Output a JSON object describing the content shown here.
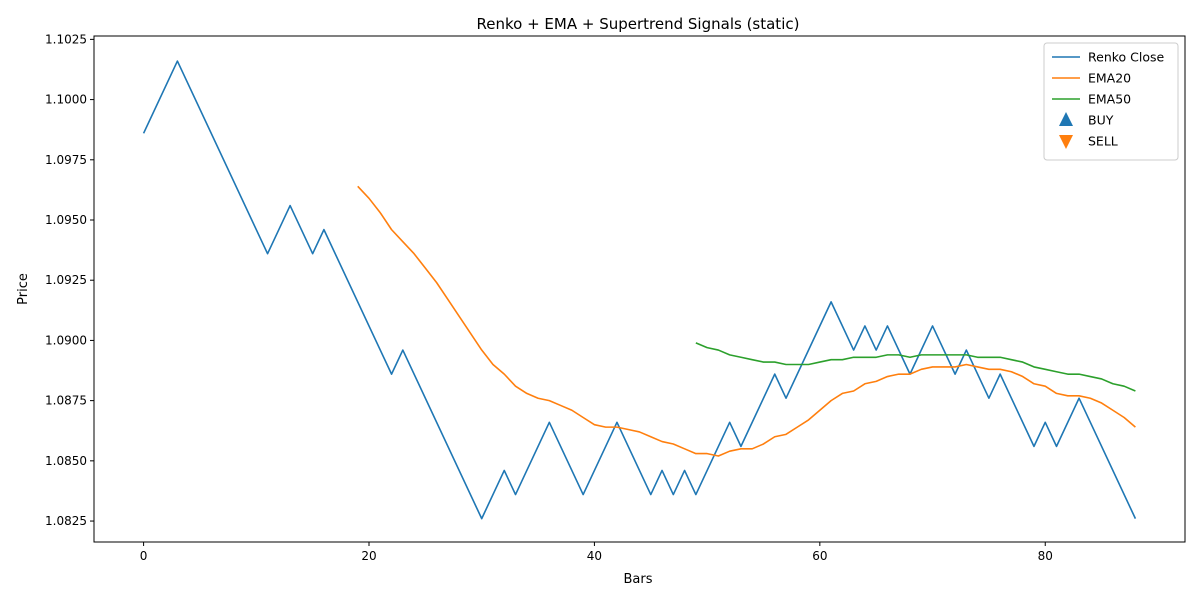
{
  "chart_data": {
    "type": "line",
    "title": "Renko + EMA + Supertrend Signals (static)",
    "xlabel": "Bars",
    "ylabel": "Price",
    "xlim": [
      -4.4,
      92.4
    ],
    "ylim": [
      1.08163,
      1.10264
    ],
    "xticks": [
      0,
      20,
      40,
      60,
      80
    ],
    "yticks": [
      1.0825,
      1.085,
      1.0875,
      1.09,
      1.0925,
      1.095,
      1.0975,
      1.1,
      1.1025
    ],
    "ytick_labels": [
      "1.0825",
      "1.0850",
      "1.0875",
      "1.0900",
      "1.0925",
      "1.0950",
      "1.0975",
      "1.1000",
      "1.1025"
    ],
    "legend_position": "upper right",
    "series": [
      {
        "name": "Renko Close",
        "color": "#1f77b4",
        "points": [
          [
            0,
            1.0986
          ],
          [
            3,
            1.1016
          ],
          [
            11,
            1.0936
          ],
          [
            13,
            1.0956
          ],
          [
            15,
            1.0936
          ],
          [
            16,
            1.0946
          ],
          [
            22,
            1.0886
          ],
          [
            23,
            1.0896
          ],
          [
            30,
            1.0826
          ],
          [
            32,
            1.0846
          ],
          [
            33,
            1.0836
          ],
          [
            36,
            1.0866
          ],
          [
            39,
            1.0836
          ],
          [
            42,
            1.0866
          ],
          [
            45,
            1.0836
          ],
          [
            46,
            1.0846
          ],
          [
            47,
            1.0836
          ],
          [
            48,
            1.0846
          ],
          [
            49,
            1.0836
          ],
          [
            52,
            1.0866
          ],
          [
            53,
            1.0856
          ],
          [
            56,
            1.0886
          ],
          [
            57,
            1.0876
          ],
          [
            61,
            1.0916
          ],
          [
            63,
            1.0896
          ],
          [
            64,
            1.0906
          ],
          [
            65,
            1.0896
          ],
          [
            66,
            1.0906
          ],
          [
            68,
            1.0886
          ],
          [
            70,
            1.0906
          ],
          [
            72,
            1.0886
          ],
          [
            73,
            1.0896
          ],
          [
            75,
            1.0876
          ],
          [
            76,
            1.0886
          ],
          [
            79,
            1.0856
          ],
          [
            80,
            1.0866
          ],
          [
            81,
            1.0856
          ],
          [
            83,
            1.0876
          ],
          [
            88,
            1.0826
          ]
        ]
      },
      {
        "name": "EMA20",
        "color": "#ff7f0e",
        "points": [
          [
            19,
            1.0964
          ],
          [
            20,
            1.0959
          ],
          [
            21,
            1.0953
          ],
          [
            22,
            1.0946
          ],
          [
            23,
            1.0941
          ],
          [
            24,
            1.0936
          ],
          [
            25,
            1.093
          ],
          [
            26,
            1.0924
          ],
          [
            27,
            1.0917
          ],
          [
            28,
            1.091
          ],
          [
            29,
            1.0903
          ],
          [
            30,
            1.0896
          ],
          [
            31,
            1.089
          ],
          [
            32,
            1.0886
          ],
          [
            33,
            1.0881
          ],
          [
            34,
            1.0878
          ],
          [
            35,
            1.0876
          ],
          [
            36,
            1.0875
          ],
          [
            37,
            1.0873
          ],
          [
            38,
            1.0871
          ],
          [
            39,
            1.0868
          ],
          [
            40,
            1.0865
          ],
          [
            41,
            1.0864
          ],
          [
            42,
            1.0864
          ],
          [
            43,
            1.0863
          ],
          [
            44,
            1.0862
          ],
          [
            45,
            1.086
          ],
          [
            46,
            1.0858
          ],
          [
            47,
            1.0857
          ],
          [
            48,
            1.0855
          ],
          [
            49,
            1.0853
          ],
          [
            50,
            1.0853
          ],
          [
            51,
            1.0852
          ],
          [
            52,
            1.0854
          ],
          [
            53,
            1.0855
          ],
          [
            54,
            1.0855
          ],
          [
            55,
            1.0857
          ],
          [
            56,
            1.086
          ],
          [
            57,
            1.0861
          ],
          [
            58,
            1.0864
          ],
          [
            59,
            1.0867
          ],
          [
            60,
            1.0871
          ],
          [
            61,
            1.0875
          ],
          [
            62,
            1.0878
          ],
          [
            63,
            1.0879
          ],
          [
            64,
            1.0882
          ],
          [
            65,
            1.0883
          ],
          [
            66,
            1.0885
          ],
          [
            67,
            1.0886
          ],
          [
            68,
            1.0886
          ],
          [
            69,
            1.0888
          ],
          [
            70,
            1.0889
          ],
          [
            71,
            1.0889
          ],
          [
            72,
            1.0889
          ],
          [
            73,
            1.089
          ],
          [
            74,
            1.0889
          ],
          [
            75,
            1.0888
          ],
          [
            76,
            1.0888
          ],
          [
            77,
            1.0887
          ],
          [
            78,
            1.0885
          ],
          [
            79,
            1.0882
          ],
          [
            80,
            1.0881
          ],
          [
            81,
            1.0878
          ],
          [
            82,
            1.0877
          ],
          [
            83,
            1.0877
          ],
          [
            84,
            1.0876
          ],
          [
            85,
            1.0874
          ],
          [
            86,
            1.0871
          ],
          [
            87,
            1.0868
          ],
          [
            88,
            1.0864
          ]
        ]
      },
      {
        "name": "EMA50",
        "color": "#2ca02c",
        "points": [
          [
            49,
            1.0899
          ],
          [
            50,
            1.0897
          ],
          [
            51,
            1.0896
          ],
          [
            52,
            1.0894
          ],
          [
            53,
            1.0893
          ],
          [
            54,
            1.0892
          ],
          [
            55,
            1.0891
          ],
          [
            56,
            1.0891
          ],
          [
            57,
            1.089
          ],
          [
            58,
            1.089
          ],
          [
            59,
            1.089
          ],
          [
            60,
            1.0891
          ],
          [
            61,
            1.0892
          ],
          [
            62,
            1.0892
          ],
          [
            63,
            1.0893
          ],
          [
            64,
            1.0893
          ],
          [
            65,
            1.0893
          ],
          [
            66,
            1.0894
          ],
          [
            67,
            1.0894
          ],
          [
            68,
            1.0893
          ],
          [
            69,
            1.0894
          ],
          [
            70,
            1.0894
          ],
          [
            71,
            1.0894
          ],
          [
            72,
            1.0894
          ],
          [
            73,
            1.0894
          ],
          [
            74,
            1.0893
          ],
          [
            75,
            1.0893
          ],
          [
            76,
            1.0893
          ],
          [
            77,
            1.0892
          ],
          [
            78,
            1.0891
          ],
          [
            79,
            1.0889
          ],
          [
            80,
            1.0888
          ],
          [
            81,
            1.0887
          ],
          [
            82,
            1.0886
          ],
          [
            83,
            1.0886
          ],
          [
            84,
            1.0885
          ],
          [
            85,
            1.0884
          ],
          [
            86,
            1.0882
          ],
          [
            87,
            1.0881
          ],
          [
            88,
            1.0879
          ]
        ]
      }
    ],
    "markers": [
      {
        "name": "BUY",
        "shape": "triangle-up",
        "color": "#1f77b4",
        "points": []
      },
      {
        "name": "SELL",
        "shape": "triangle-down",
        "color": "#ff7f0e",
        "points": []
      }
    ],
    "grid": false
  }
}
